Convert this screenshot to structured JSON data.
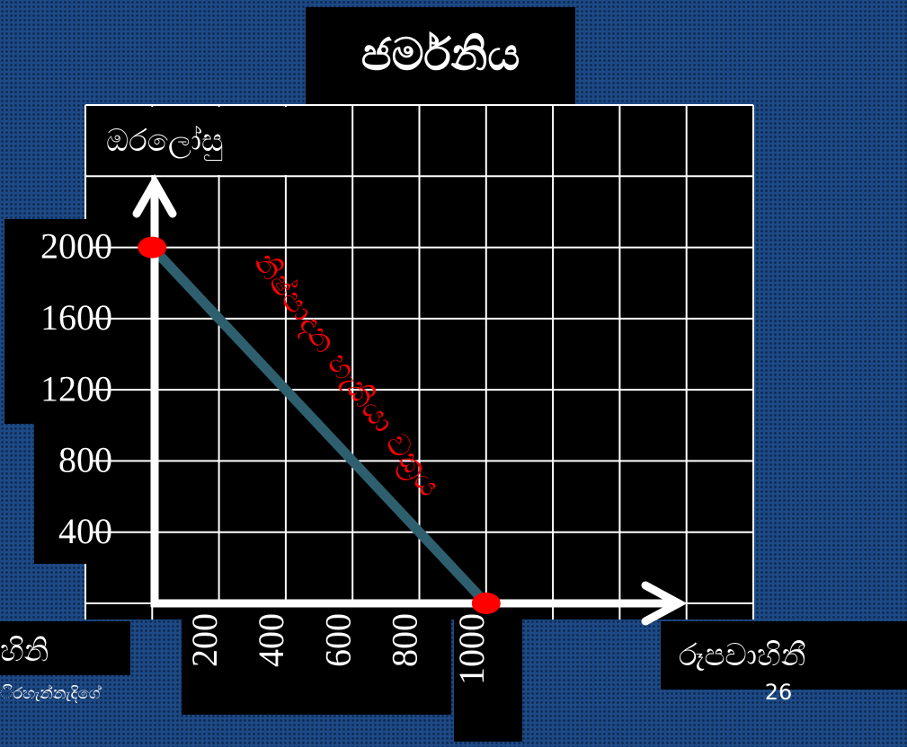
{
  "chart_data": {
    "type": "line",
    "title": "ජර්මනිය",
    "y_label": "ඔරලෝසු",
    "x_label": "රූපවාහිනී",
    "annotation": "නිෂ්පාදන හැකියා වක්‍රය",
    "x": [
      0,
      1000
    ],
    "series": [
      {
        "name": "නිෂ්පාදන හැකියා වක්‍රය",
        "color": "#2e5f6e",
        "values": [
          2000,
          0
        ]
      }
    ],
    "xlim": [
      -200,
      1800
    ],
    "xticks": [
      200,
      400,
      600,
      800,
      1000
    ],
    "ylim": [
      0,
      2800
    ],
    "yticks": [
      400,
      800,
      1200,
      1600,
      2000
    ],
    "grid": true,
    "marker_color": "#ff0000"
  },
  "footer": {
    "left": "හිනි",
    "author": "ිරහැන්නැදිගේ",
    "page": "26"
  }
}
